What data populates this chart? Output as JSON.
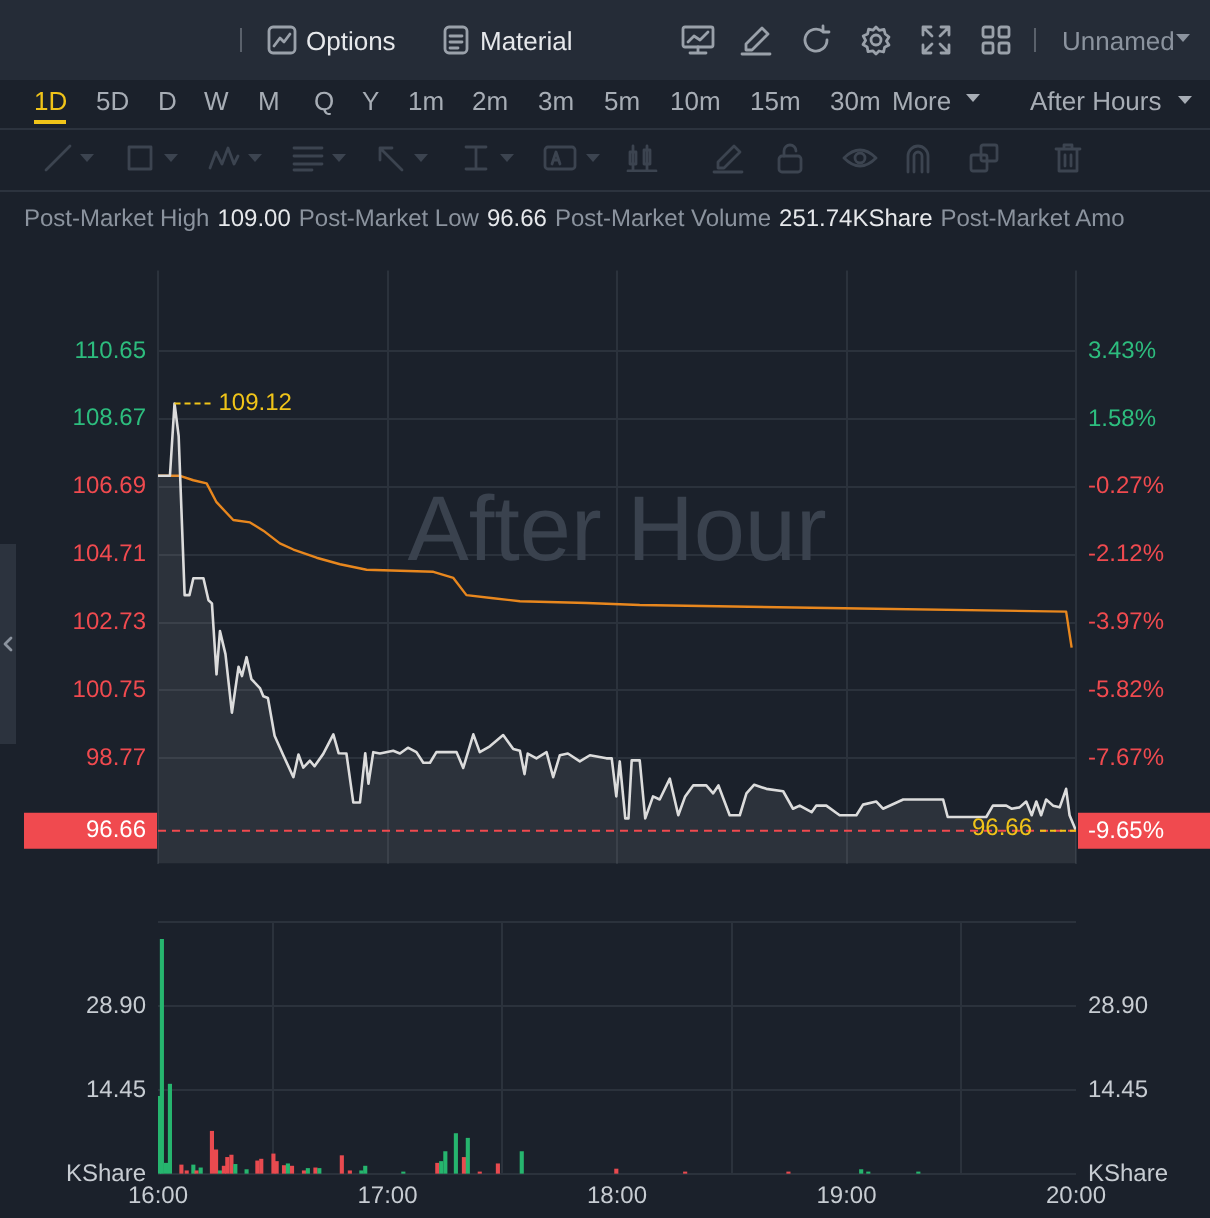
{
  "chart_data": [
    {
      "type": "line",
      "tick_labels": "y",
      "grid": true,
      "legend": false,
      "marker": "none",
      "xlim": [
        16,
        20
      ],
      "xticks": [
        {
          "value": 16,
          "label": null
        },
        {
          "value": 17,
          "label": null
        },
        {
          "value": 18,
          "label": null
        },
        {
          "value": 19,
          "label": null
        },
        {
          "value": 20,
          "label": null
        }
      ],
      "ylim": [
        95.7,
        113.0
      ],
      "yticks": [
        98.77,
        100.75,
        102.73,
        104.71,
        106.69,
        108.67,
        110.65
      ],
      "y2lim": [
        -10.54,
        5.63
      ],
      "y2ticks": [
        {
          "value": -9.65,
          "label": "-9.65%"
        },
        {
          "value": -7.67,
          "label": "-7.67%"
        },
        {
          "value": -5.82,
          "label": "-5.82%"
        },
        {
          "value": -3.97,
          "label": "-3.97%"
        },
        {
          "value": -2.12,
          "label": "-2.12%"
        },
        {
          "value": -0.27,
          "label": "-0.27%"
        },
        {
          "value": 1.58,
          "label": "1.58%"
        },
        {
          "value": 3.43,
          "label": "3.43%"
        }
      ],
      "ref_lines": [
        {
          "axis": "y",
          "value": 96.66,
          "label": "96.66",
          "color": "#f04a4f",
          "line_style": "dashed"
        }
      ],
      "annotations": [
        {
          "text": "109.12",
          "x": 16.072,
          "y": 109.12
        },
        {
          "text": "96.66",
          "x": 20,
          "y": 96.66
        },
        "After Hour",
        "Options",
        "Material",
        "Unnamed",
        "1D",
        "5D",
        "D",
        "W",
        "M",
        "Q",
        "Y",
        "1m",
        "2m",
        "3m",
        "5m",
        "10m",
        "15m",
        "30m",
        "More",
        "After Hours",
        "Post-Market High",
        "109.00",
        "Post-Market Low",
        "96.66",
        "Post-Market Volume",
        "251.74KShare",
        "Post-Market Amo"
      ],
      "series": [
        {
          "type": "area",
          "color": "#dcdcdc",
          "x": [
            16.0,
            16.052,
            16.072,
            16.09,
            16.116,
            16.137,
            16.154,
            16.198,
            16.22,
            16.235,
            16.255,
            16.27,
            16.294,
            16.322,
            16.351,
            16.366,
            16.386,
            16.407,
            16.444,
            16.459,
            16.479,
            16.508,
            16.546,
            16.59,
            16.612,
            16.633,
            16.662,
            16.682,
            16.72,
            16.764,
            16.787,
            16.821,
            16.851,
            16.88,
            16.903,
            16.917,
            16.938,
            16.967,
            17.025,
            17.054,
            17.089,
            17.126,
            17.156,
            17.185,
            17.213,
            17.301,
            17.33,
            17.374,
            17.402,
            17.446,
            17.504,
            17.548,
            17.577,
            17.597,
            17.611,
            17.649,
            17.693,
            17.722,
            17.751,
            17.786,
            17.838,
            17.882,
            17.954,
            17.977,
            17.997,
            18.012,
            18.036,
            18.05,
            18.064,
            18.099,
            18.123,
            18.157,
            18.186,
            18.23,
            18.267,
            18.297,
            18.332,
            18.389,
            18.419,
            18.442,
            18.491,
            18.535,
            18.564,
            18.598,
            18.651,
            18.724,
            18.767,
            18.796,
            18.848,
            18.868,
            18.912,
            18.97,
            19.043,
            19.072,
            19.13,
            19.159,
            19.247,
            19.421,
            19.441,
            19.609,
            19.638,
            19.696,
            19.719,
            19.754,
            19.783,
            19.807,
            19.827,
            19.848,
            19.87,
            19.9,
            19.929,
            19.957,
            19.972,
            20.0
          ],
          "values": [
            107.01,
            107.01,
            109.12,
            108.17,
            103.53,
            103.53,
            104.02,
            104.02,
            103.38,
            103.29,
            101.22,
            102.48,
            101.81,
            100.1,
            101.44,
            101.17,
            101.72,
            101.08,
            100.82,
            100.58,
            100.53,
            99.43,
            98.86,
            98.22,
            98.88,
            98.5,
            98.7,
            98.54,
            98.9,
            99.47,
            98.92,
            98.91,
            97.48,
            97.48,
            98.92,
            98.03,
            98.95,
            98.91,
            98.99,
            98.91,
            99.08,
            98.95,
            98.64,
            98.64,
            98.95,
            98.95,
            98.49,
            99.47,
            98.95,
            99.12,
            99.45,
            99.04,
            98.99,
            98.31,
            98.91,
            98.77,
            98.95,
            98.22,
            98.86,
            98.91,
            98.68,
            98.86,
            98.77,
            98.77,
            97.66,
            98.68,
            97.02,
            97.02,
            98.71,
            98.71,
            97.02,
            97.66,
            97.57,
            98.18,
            97.11,
            97.66,
            97.98,
            97.98,
            97.75,
            97.98,
            97.11,
            97.11,
            97.75,
            98.0,
            97.88,
            97.81,
            97.3,
            97.39,
            97.2,
            97.39,
            97.39,
            97.11,
            97.11,
            97.42,
            97.51,
            97.3,
            97.57,
            97.57,
            97.06,
            97.06,
            97.39,
            97.39,
            97.3,
            97.34,
            97.51,
            97.11,
            97.51,
            97.11,
            97.57,
            97.39,
            97.34,
            97.88,
            97.11,
            96.66
          ]
        },
        {
          "type": "line",
          "color": "#e8871e",
          "x": [
            16.0,
            16.096,
            16.154,
            16.212,
            16.255,
            16.328,
            16.401,
            16.459,
            16.531,
            16.59,
            16.691,
            16.793,
            16.909,
            17.2,
            17.287,
            17.344,
            17.461,
            17.577,
            17.867,
            18.099,
            19.057,
            19.957,
            19.981
          ],
          "values": [
            107.01,
            107.01,
            106.88,
            106.79,
            106.24,
            105.72,
            105.65,
            105.41,
            105.04,
            104.86,
            104.62,
            104.43,
            104.27,
            104.21,
            104.03,
            103.53,
            103.44,
            103.35,
            103.3,
            103.24,
            103.14,
            103.05,
            102.0
          ]
        }
      ]
    },
    {
      "type": "bar",
      "grid": true,
      "legend": false,
      "xlim": [
        16,
        20
      ],
      "xticks": [
        {
          "value": 16,
          "label": "16:00"
        },
        {
          "value": 17,
          "label": "17:00"
        },
        {
          "value": 18,
          "label": "18:00"
        },
        {
          "value": 19,
          "label": "19:00"
        },
        {
          "value": 20,
          "label": "20:00"
        }
      ],
      "ylim": [
        0,
        43.35
      ],
      "yticks": [
        {
          "value": 0,
          "label": "KShare"
        },
        {
          "value": 14.45,
          "label": "14.45"
        },
        {
          "value": 28.9,
          "label": "28.90"
        },
        {
          "value": 43.35,
          "label": null
        }
      ],
      "y2lim": [
        0,
        43.35
      ],
      "y2ticks": [
        {
          "value": 0,
          "label": "KShare"
        },
        {
          "value": 14.45,
          "label": "14.45"
        },
        {
          "value": 28.9,
          "label": "28.90"
        },
        {
          "value": 43.35,
          "label": null
        }
      ],
      "x": [
        16.003,
        16.017,
        16.035,
        16.052,
        16.102,
        16.125,
        16.154,
        16.168,
        16.186,
        16.235,
        16.253,
        16.27,
        16.287,
        16.302,
        16.32,
        16.337,
        16.386,
        16.433,
        16.45,
        16.503,
        16.517,
        16.549,
        16.566,
        16.584,
        16.636,
        16.653,
        16.686,
        16.703,
        16.801,
        16.836,
        16.886,
        16.903,
        17.069,
        17.217,
        17.234,
        17.252,
        17.298,
        17.333,
        17.35,
        17.402,
        17.481,
        17.585,
        17.997,
        18.297,
        18.747,
        19.064,
        19.095,
        19.313
      ],
      "series": [
        {
          "values": [
            13.3,
            40.3,
            1.8,
            15.4,
            1.5,
            0.5,
            1.5,
            0.5,
            1.0,
            7.3,
            4.1,
            0.5,
            1.3,
            2.8,
            3.2,
            1.6,
            0.7,
            2.2,
            2.5,
            3.4,
            2.1,
            1.4,
            1.7,
            1.3,
            0.5,
            0.9,
            1.0,
            0.9,
            3.1,
            0.5,
            0.5,
            1.3,
            0.3,
            1.8,
            2.1,
            3.8,
            6.9,
            2.8,
            6.1,
            0.3,
            1.7,
            3.8,
            0.8,
            0.3,
            0.3,
            0.7,
            0.3,
            0.3
          ],
          "colors": [
            "#26b56e",
            "#26b56e",
            "#26b56e",
            "#26b56e",
            "#e84a4f",
            "#e84a4f",
            "#26b56e",
            "#e84a4f",
            "#26b56e",
            "#e84a4f",
            "#e84a4f",
            "#26b56e",
            "#e84a4f",
            "#e84a4f",
            "#e84a4f",
            "#26b56e",
            "#26b56e",
            "#e84a4f",
            "#e84a4f",
            "#e84a4f",
            "#e84a4f",
            "#e84a4f",
            "#26b56e",
            "#e84a4f",
            "#e84a4f",
            "#26b56e",
            "#e84a4f",
            "#26b56e",
            "#e84a4f",
            "#e84a4f",
            "#26b56e",
            "#26b56e",
            "#26b56e",
            "#e84a4f",
            "#26b56e",
            "#26b56e",
            "#26b56e",
            "#e84a4f",
            "#26b56e",
            "#e84a4f",
            "#e84a4f",
            "#26b56e",
            "#e84a4f",
            "#e84a4f",
            "#e84a4f",
            "#26b56e",
            "#26b56e",
            "#26b56e"
          ]
        }
      ]
    }
  ]
}
